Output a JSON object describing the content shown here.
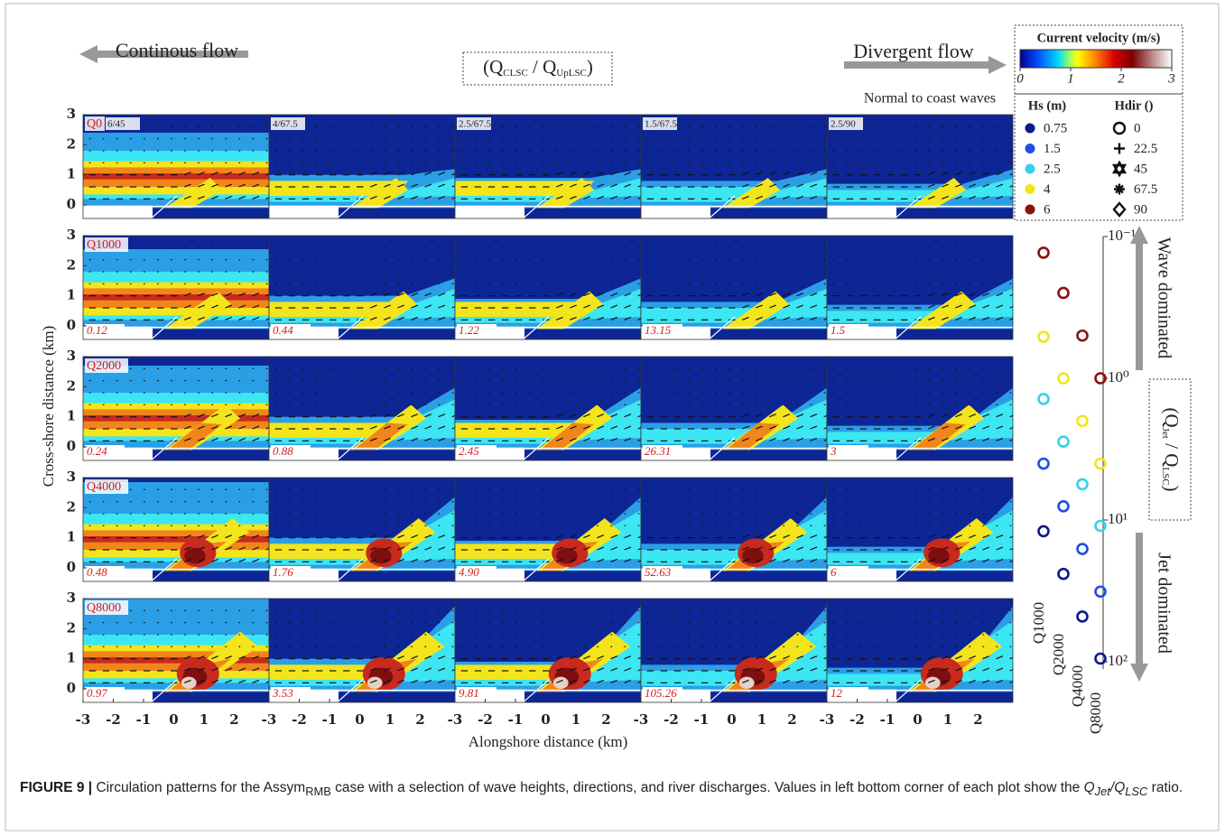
{
  "header": {
    "left_title": "Continous flow",
    "right_title": "Divergent flow",
    "center": [
      "(Q",
      "CLSC",
      " / Q",
      "UpLSC",
      ")"
    ],
    "note": "Normal to coast waves"
  },
  "panels": {
    "rows": [
      "Q0",
      "Q1000",
      "Q2000",
      "Q4000",
      "Q8000"
    ],
    "columns": [
      "6/45",
      "4/67.5",
      "2.5/67.5",
      "1.5/67.5",
      "2.5/90"
    ],
    "ratios": [
      [
        "0.12",
        "0.44",
        "1.22",
        "13.15",
        "1.5"
      ],
      [
        "0.24",
        "0.88",
        "2.45",
        "26.31",
        "3"
      ],
      [
        "0.48",
        "1.76",
        "4.90",
        "52.63",
        "6"
      ],
      [
        "0.97",
        "3.53",
        "9.81",
        "105.26",
        "12"
      ]
    ],
    "xlabel": "Alongshore distance (km)",
    "ylabel": "Cross-shore distance (km)",
    "xticks": [
      -3,
      -2,
      -1,
      0,
      1,
      2
    ],
    "yticks": [
      0,
      1,
      2,
      3
    ],
    "xlim": [
      -3,
      3.15
    ],
    "ylim": [
      -0.45,
      3
    ]
  },
  "colorbar": {
    "title": "Current velocity (m/s)",
    "ticks": [
      0,
      1,
      2,
      3
    ],
    "lim": [
      0,
      3
    ]
  },
  "legend": {
    "hs_title": "Hs (m)",
    "hdir_title": "Hdir ()",
    "hdir": [
      "0",
      "22.5",
      "45",
      "67.5",
      "90"
    ]
  },
  "chart_data": {
    "type": "scatter",
    "title": [
      "(Q",
      "Jet",
      " / Q",
      "LSC",
      ")"
    ],
    "annotations": [
      "Wave dominated",
      "Jet dominated"
    ],
    "categories": [
      "Q1000",
      "Q2000",
      "Q4000",
      "Q8000"
    ],
    "series": [
      {
        "name": "0.75",
        "color": "#0c1a8a",
        "values": [
          12,
          24,
          48,
          95
        ]
      },
      {
        "name": "1.5",
        "color": "#1f4fe0",
        "values": [
          4,
          8,
          16,
          32
        ]
      },
      {
        "name": "2.5",
        "color": "#38d0ee",
        "values": [
          1.4,
          2.8,
          5.6,
          11
        ]
      },
      {
        "name": "4",
        "color": "#f2e51a",
        "values": [
          0.51,
          1,
          2,
          4
        ]
      },
      {
        "name": "6",
        "color": "#8b1010",
        "values": [
          0.13,
          0.25,
          0.5,
          1
        ]
      }
    ],
    "ylim": [
      0.1,
      100
    ],
    "log": true,
    "inverted": true,
    "yticks": [
      {
        "value": 0.1,
        "label": "10⁻¹"
      },
      {
        "value": 1,
        "label": "10⁰"
      },
      {
        "value": 10,
        "label": "10¹"
      },
      {
        "value": 100,
        "label": "10²"
      }
    ]
  },
  "caption": {
    "label": "FIGURE 9 |",
    "parts": [
      " Circulation patterns for the Assym",
      "RMB",
      " case with a selection of wave heights, directions, and river discharges. Values in left bottom corner of each plot show the ",
      "Q",
      "Jet",
      "/",
      "Q",
      "LSC",
      " ratio."
    ]
  }
}
